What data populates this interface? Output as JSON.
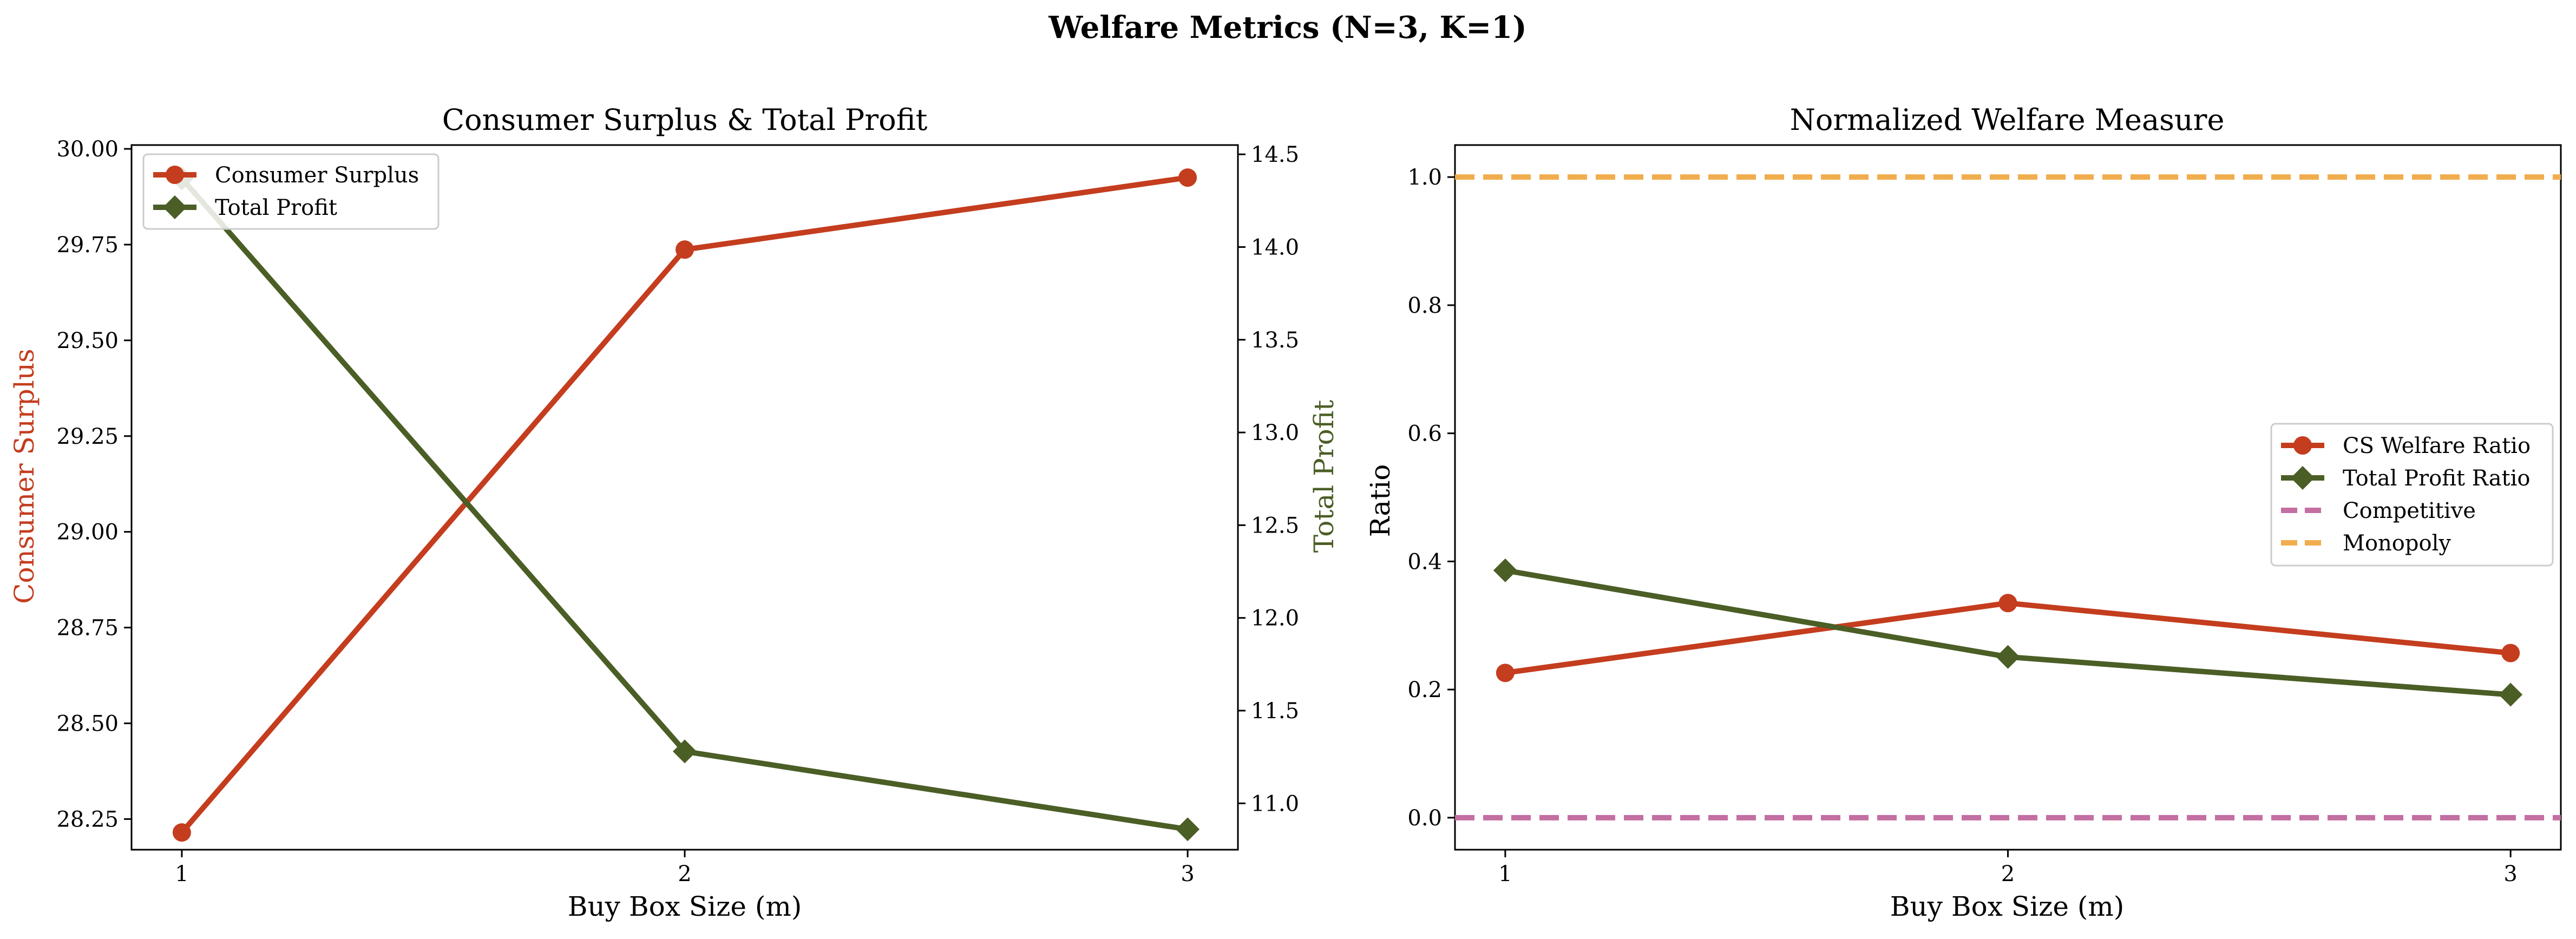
{
  "figure": {
    "suptitle": "Welfare Metrics (N=3, K=1)"
  },
  "colors": {
    "cs": "#c43d1e",
    "profit": "#4b5e26",
    "competitive": "#c36fa2",
    "monopoly": "#f0ad4e"
  },
  "chart_data": [
    {
      "type": "line",
      "title": "Consumer Surplus & Total Profit",
      "xlabel": "Buy Box Size (m)",
      "ylabel_left": "Consumer Surplus",
      "ylabel_right": "Total Profit",
      "x": [
        1,
        2,
        3
      ],
      "xlim": [
        0.9,
        3.1
      ],
      "ylim_left": [
        28.17,
        30.01
      ],
      "ylim_right": [
        10.75,
        14.55
      ],
      "yticks_left": [
        "28.25",
        "28.50",
        "28.75",
        "29.00",
        "29.25",
        "29.50",
        "29.75",
        "30.00"
      ],
      "yticks_right": [
        "11.0",
        "11.5",
        "12.0",
        "12.5",
        "13.0",
        "13.5",
        "14.0",
        "14.5"
      ],
      "xticks": [
        "1",
        "2",
        "3"
      ],
      "grid": false,
      "legend_position": "upper-left",
      "series": [
        {
          "name": "Consumer Surplus",
          "axis": "left",
          "marker": "circle",
          "values": [
            28.215,
            29.737,
            29.925
          ]
        },
        {
          "name": "Total Profit",
          "axis": "right",
          "marker": "diamond",
          "values": [
            14.37,
            11.28,
            10.86
          ]
        }
      ]
    },
    {
      "type": "line",
      "title": "Normalized Welfare Measure",
      "xlabel": "Buy Box Size (m)",
      "ylabel": "Ratio",
      "x": [
        1,
        2,
        3
      ],
      "xlim": [
        0.9,
        3.1
      ],
      "ylim": [
        -0.05,
        1.05
      ],
      "yticks": [
        "0.0",
        "0.2",
        "0.4",
        "0.6",
        "0.8",
        "1.0"
      ],
      "xticks": [
        "1",
        "2",
        "3"
      ],
      "grid": false,
      "legend_position": "center-right",
      "series": [
        {
          "name": "CS Welfare Ratio",
          "marker": "circle",
          "values": [
            0.226,
            0.335,
            0.257
          ]
        },
        {
          "name": "Total Profit Ratio",
          "marker": "diamond",
          "values": [
            0.386,
            0.251,
            0.192
          ]
        },
        {
          "name": "Competitive",
          "style": "dashed",
          "values": [
            0.0,
            0.0,
            0.0
          ]
        },
        {
          "name": "Monopoly",
          "style": "dashed",
          "values": [
            1.0,
            1.0,
            1.0
          ]
        }
      ]
    }
  ]
}
